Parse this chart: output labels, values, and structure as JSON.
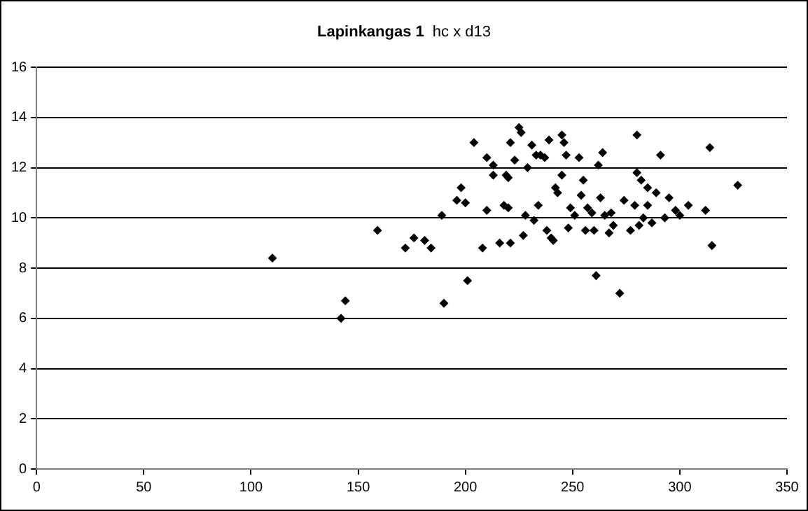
{
  "chart_data": {
    "type": "scatter",
    "title": "Lapinkangas 1",
    "subtitle": "hc x d13",
    "x": [
      110,
      142,
      144,
      159,
      172,
      176,
      181,
      184,
      189,
      190,
      196,
      198,
      200,
      201,
      204,
      208,
      210,
      210,
      213,
      213,
      216,
      218,
      220,
      219,
      220,
      221,
      221,
      223,
      225,
      226,
      227,
      228,
      229,
      231,
      232,
      233,
      234,
      235,
      237,
      238,
      239,
      240,
      241,
      242,
      243,
      245,
      245,
      246,
      247,
      248,
      249,
      251,
      253,
      254,
      255,
      256,
      257,
      259,
      260,
      261,
      262,
      263,
      264,
      265,
      267,
      268,
      269,
      272,
      274,
      277,
      279,
      280,
      280,
      281,
      282,
      283,
      285,
      285,
      287,
      289,
      291,
      293,
      295,
      298,
      300,
      304,
      312,
      314,
      315,
      327
    ],
    "series": [
      {
        "color": "#000000",
        "values": [
          8.4,
          6.0,
          6.7,
          9.5,
          8.8,
          9.2,
          9.1,
          8.8,
          10.1,
          6.6,
          10.7,
          11.2,
          10.6,
          7.5,
          13.0,
          8.8,
          12.4,
          10.3,
          12.1,
          11.7,
          9.0,
          10.5,
          10.4,
          11.7,
          11.6,
          13.0,
          9.0,
          12.3,
          13.6,
          13.4,
          9.3,
          10.1,
          12.0,
          12.9,
          9.9,
          12.5,
          10.5,
          12.5,
          12.4,
          9.5,
          13.1,
          9.2,
          9.1,
          11.2,
          11.0,
          11.7,
          13.3,
          13.0,
          12.5,
          9.6,
          10.4,
          10.1,
          12.4,
          10.9,
          11.5,
          9.5,
          10.4,
          10.2,
          9.5,
          7.7,
          12.1,
          10.8,
          12.6,
          10.1,
          9.4,
          10.2,
          9.7,
          7.0,
          10.7,
          9.5,
          10.5,
          11.8,
          13.3,
          9.7,
          11.5,
          10.0,
          10.5,
          11.2,
          9.8,
          11.0,
          12.5,
          10.0,
          10.8,
          10.3,
          10.1,
          10.5,
          10.3,
          12.8,
          8.9,
          11.3
        ]
      }
    ],
    "xlim": [
      0,
      350
    ],
    "xticks": [
      0,
      50,
      100,
      150,
      200,
      250,
      300,
      350
    ],
    "ylim": [
      0,
      16
    ],
    "yticks": [
      0,
      2,
      4,
      6,
      8,
      10,
      12,
      14,
      16
    ],
    "grid": "y",
    "marker": "diamond",
    "legend": false
  }
}
